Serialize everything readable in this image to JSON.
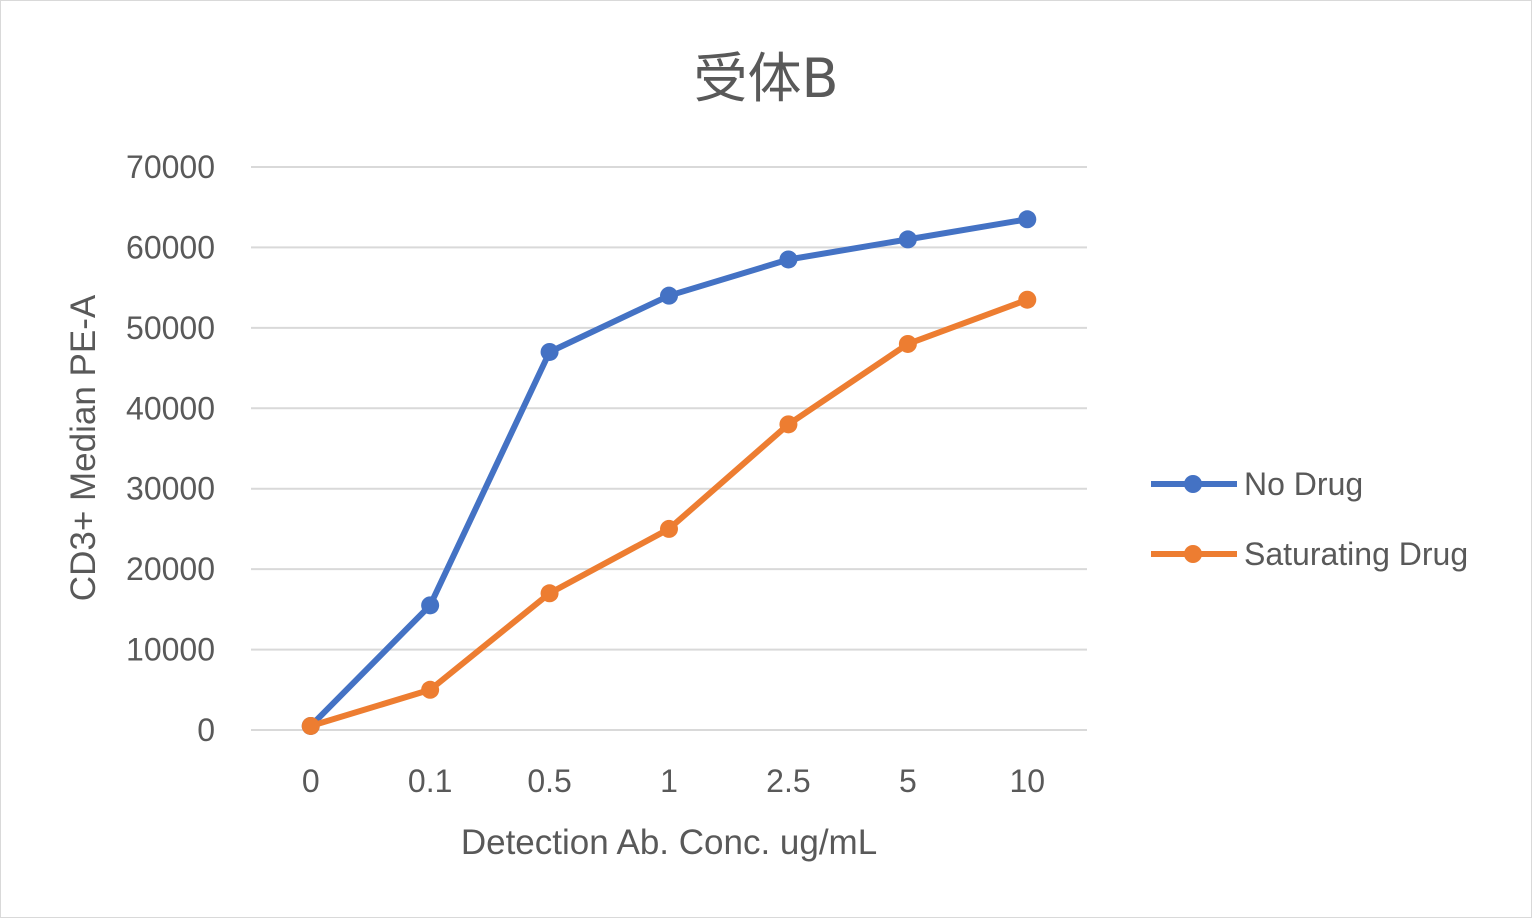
{
  "chart_data": {
    "type": "line",
    "title": "受体B",
    "xlabel": "Detection Ab. Conc. ug/mL",
    "ylabel": "CD3+ Median PE-A",
    "categories": [
      "0",
      "0.1",
      "0.5",
      "1",
      "2.5",
      "5",
      "10"
    ],
    "ylim": [
      0,
      70000
    ],
    "yticks": [
      0,
      10000,
      20000,
      30000,
      40000,
      50000,
      60000,
      70000
    ],
    "grid": true,
    "legend_position": "right",
    "series": [
      {
        "name": "No Drug",
        "color": "#4472C4",
        "values": [
          500,
          15500,
          47000,
          54000,
          58500,
          61000,
          63500
        ]
      },
      {
        "name": "Saturating Drug",
        "color": "#ED7D31",
        "values": [
          500,
          5000,
          17000,
          25000,
          38000,
          48000,
          53500
        ]
      }
    ]
  }
}
